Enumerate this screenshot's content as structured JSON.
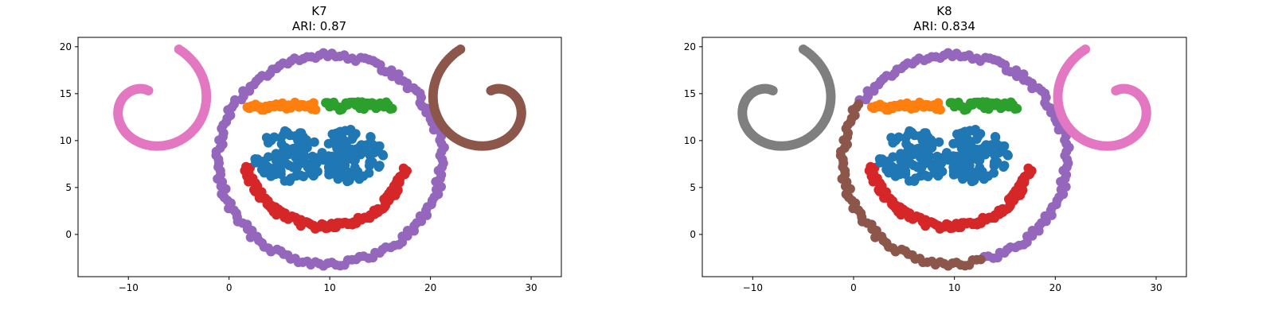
{
  "chart_data": [
    {
      "type": "scatter",
      "title": "K7",
      "subtitle": "ARI: 0.87",
      "xlabel": "",
      "ylabel": "",
      "xlim": [
        -15,
        33
      ],
      "ylim": [
        -4.5,
        21
      ],
      "xticks": [
        -10,
        0,
        10,
        20,
        30
      ],
      "yticks": [
        0,
        5,
        10,
        15,
        20
      ],
      "grid": false,
      "legend": "none",
      "cluster_colors": {
        "eyes": "#1f77b4",
        "left_brow": "#ff7f0e",
        "right_brow": "#2ca02c",
        "mouth": "#d62728",
        "face": "#9467bd",
        "right_spiral": "#8c564b",
        "left_spiral": "#e377c2",
        "face_lower_left": "#9467bd"
      }
    },
    {
      "type": "scatter",
      "title": "K8",
      "subtitle": "ARI: 0.834",
      "xlabel": "",
      "ylabel": "",
      "xlim": [
        -15,
        33
      ],
      "ylim": [
        -4.5,
        21
      ],
      "xticks": [
        -10,
        0,
        10,
        20,
        30
      ],
      "yticks": [
        0,
        5,
        10,
        15,
        20
      ],
      "grid": false,
      "legend": "none",
      "cluster_colors": {
        "eyes": "#1f77b4",
        "left_brow": "#ff7f0e",
        "right_brow": "#2ca02c",
        "mouth": "#d62728",
        "face": "#9467bd",
        "right_spiral": "#e377c2",
        "left_spiral": "#7f7f7f",
        "face_lower_left": "#8c564b"
      }
    }
  ]
}
